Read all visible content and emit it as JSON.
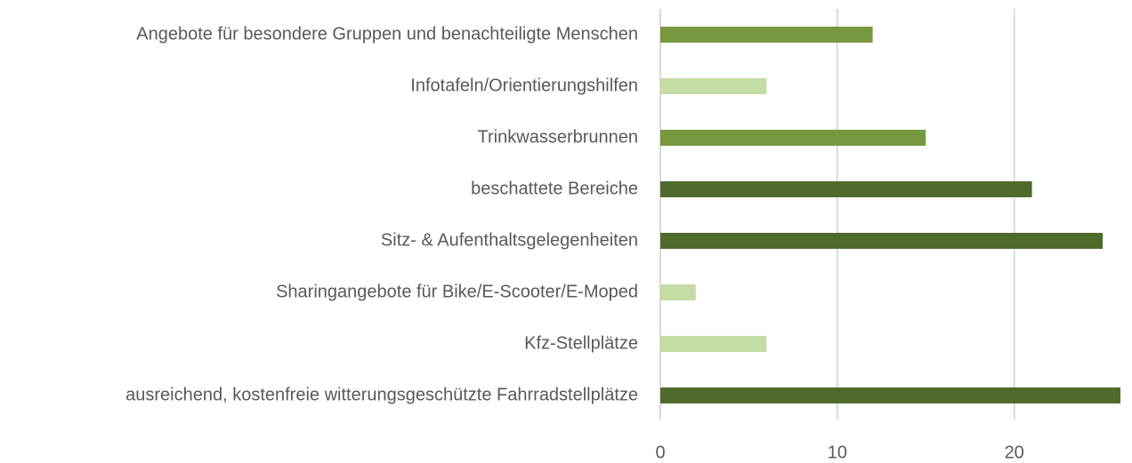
{
  "chart_data": {
    "type": "barh",
    "categories": [
      "Angebote für besondere Gruppen und benachteiligte Menschen",
      "Infotafeln/Orientierungshilfen",
      "Trinkwasserbrunnen",
      "beschattete Bereiche",
      "Sitz- & Aufenthaltsgelegenheiten",
      "Sharingangebote für Bike/E-Scooter/E-Moped",
      "Kfz-Stellplätze",
      "ausreichend, kostenfreie witterungsgeschützte Fahrradstellplätze"
    ],
    "values": [
      12,
      6,
      15,
      21,
      25,
      2,
      6,
      26
    ],
    "colors": [
      "#77983f",
      "#c5dca5",
      "#77983f",
      "#4f6a2b",
      "#4f6a2b",
      "#c5dca5",
      "#c5dca5",
      "#4f6a2b"
    ],
    "xlim": [
      0,
      26
    ],
    "xticks": [
      0,
      10,
      20
    ],
    "grid": true
  }
}
